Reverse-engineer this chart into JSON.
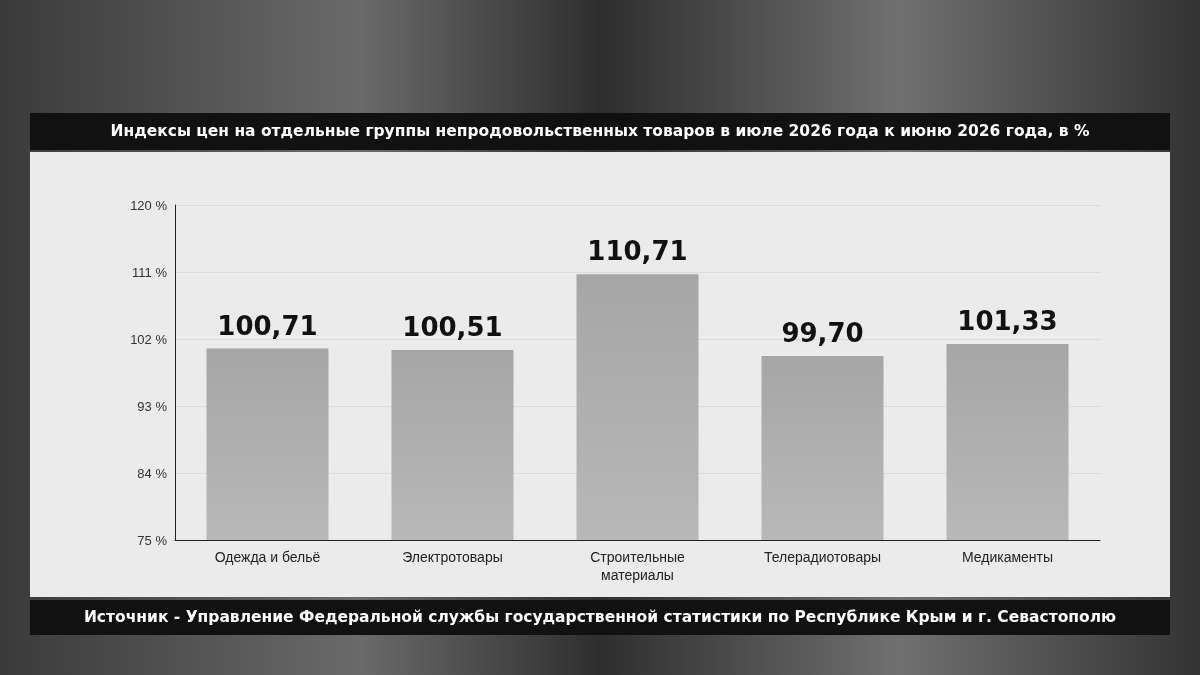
{
  "chart_data": {
    "type": "bar",
    "title": "Индексы цен на отдельные группы непродовольственных товаров в июле 2026 года к июню 2026 года, в %",
    "categories": [
      "Одежда и бельё",
      "Электротовары",
      "Строительные\nматериалы",
      "Телерадиотовары",
      "Медикаменты"
    ],
    "values": [
      100.71,
      100.51,
      110.71,
      99.7,
      101.33
    ],
    "value_labels": [
      "100,71",
      "100,51",
      "110,71",
      "99,70",
      "101,33"
    ],
    "color": "#b8b8b8",
    "ylim": [
      75,
      120
    ],
    "yticks": [
      {
        "value": 75,
        "label": "75 %"
      },
      {
        "value": 84,
        "label": "84 %"
      },
      {
        "value": 93,
        "label": "93 %"
      },
      {
        "value": 102,
        "label": "102 %"
      },
      {
        "value": 111,
        "label": "111 %"
      },
      {
        "value": 120,
        "label": "120 %"
      }
    ],
    "grid": "y",
    "annotations": [
      "Источник - Управление Федеральной службы государственной статистики по Республике Крым и г. Севастополю"
    ]
  }
}
